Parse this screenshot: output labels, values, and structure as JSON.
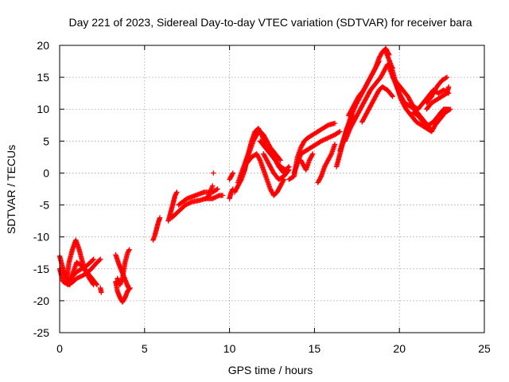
{
  "chart_data": {
    "type": "scatter",
    "title": "Day 221 of 2023, Sidereal Day-to-day VTEC variation (SDTVAR) for receiver bara",
    "xlabel": "GPS time / hours",
    "ylabel": "SDTVAR / TECUs",
    "xlim": [
      0,
      25
    ],
    "ylim": [
      -25,
      20
    ],
    "xticks": [
      "0",
      "5",
      "10",
      "15",
      "20",
      "25"
    ],
    "yticks": [
      "-25",
      "-20",
      "-15",
      "-10",
      "-5",
      "0",
      "5",
      "10",
      "15",
      "20"
    ],
    "grid": true,
    "marker": "plus",
    "series_color": "#ff0000",
    "series": [
      {
        "tracks": [
          [
            [
              0.0,
              -15.0
            ],
            [
              0.2,
              -17.0
            ],
            [
              0.5,
              -17.5
            ],
            [
              0.8,
              -17.0
            ],
            [
              1.0,
              -16.5
            ],
            [
              1.4,
              -16.0
            ],
            [
              1.8,
              -15.2
            ],
            [
              2.2,
              -14.0
            ],
            [
              2.4,
              -13.5
            ]
          ],
          [
            [
              0.0,
              -13.0
            ],
            [
              0.2,
              -15.0
            ],
            [
              0.4,
              -16.5
            ],
            [
              0.6,
              -17.0
            ],
            [
              0.8,
              -16.0
            ],
            [
              1.0,
              -15.5
            ],
            [
              1.3,
              -15.0
            ],
            [
              1.6,
              -14.5
            ],
            [
              2.0,
              -13.5
            ]
          ],
          [
            [
              0.4,
              -17.0
            ],
            [
              0.55,
              -14.0
            ],
            [
              0.75,
              -12.0
            ],
            [
              0.95,
              -10.5
            ],
            [
              1.15,
              -12.0
            ],
            [
              1.35,
              -14.0
            ],
            [
              1.55,
              -15.5
            ],
            [
              1.75,
              -16.5
            ],
            [
              2.0,
              -17.5
            ]
          ],
          [
            [
              0.6,
              -17.5
            ],
            [
              0.8,
              -15.5
            ],
            [
              1.0,
              -14.0
            ],
            [
              1.3,
              -14.5
            ],
            [
              1.6,
              -15.5
            ],
            [
              1.9,
              -16.5
            ],
            [
              2.2,
              -17.5
            ]
          ],
          [
            [
              2.4,
              -18.0
            ],
            [
              2.45,
              -18.7
            ]
          ],
          [
            [
              3.3,
              -12.8
            ],
            [
              3.45,
              -14.0
            ],
            [
              3.6,
              -15.0
            ],
            [
              3.75,
              -16.0
            ],
            [
              3.9,
              -17.0
            ],
            [
              4.05,
              -18.0
            ]
          ],
          [
            [
              3.3,
              -17.0
            ],
            [
              3.4,
              -18.5
            ],
            [
              3.55,
              -19.5
            ],
            [
              3.7,
              -20.2
            ],
            [
              3.85,
              -19.5
            ],
            [
              4.0,
              -18.5
            ],
            [
              4.15,
              -18.0
            ]
          ],
          [
            [
              3.4,
              -16.5
            ],
            [
              3.55,
              -17.5
            ],
            [
              3.7,
              -16.5
            ],
            [
              3.85,
              -14.0
            ],
            [
              4.0,
              -12.5
            ],
            [
              4.1,
              -12.0
            ]
          ],
          [
            [
              5.5,
              -10.5
            ],
            [
              5.6,
              -9.8
            ],
            [
              5.7,
              -8.8
            ],
            [
              5.8,
              -7.8
            ],
            [
              5.9,
              -7.0
            ]
          ],
          [
            [
              6.4,
              -7.5
            ],
            [
              6.5,
              -6.5
            ],
            [
              6.6,
              -5.5
            ],
            [
              6.7,
              -4.5
            ],
            [
              6.8,
              -3.5
            ],
            [
              6.9,
              -3.0
            ]
          ],
          [
            [
              6.6,
              -7.0
            ],
            [
              7.0,
              -6.0
            ],
            [
              7.4,
              -5.0
            ],
            [
              7.8,
              -4.5
            ],
            [
              8.2,
              -4.3
            ],
            [
              8.6,
              -4.0
            ],
            [
              9.0,
              -4.0
            ],
            [
              9.4,
              -3.5
            ],
            [
              9.6,
              -3.5
            ]
          ],
          [
            [
              7.0,
              -5.0
            ],
            [
              7.5,
              -4.0
            ],
            [
              8.0,
              -3.5
            ],
            [
              8.5,
              -3.0
            ],
            [
              9.0,
              -3.0
            ],
            [
              9.3,
              -2.5
            ]
          ],
          [
            [
              8.6,
              -4.0
            ],
            [
              8.8,
              -3.5
            ],
            [
              9.0,
              -2.0
            ]
          ],
          [
            [
              9.05,
              0.0
            ]
          ],
          [
            [
              10.0,
              -4.0
            ],
            [
              10.1,
              -3.0
            ],
            [
              10.2,
              -2.5
            ]
          ],
          [
            [
              10.0,
              -1.0
            ],
            [
              10.1,
              -0.5
            ],
            [
              10.2,
              0.0
            ]
          ],
          [
            [
              10.3,
              -3.0
            ],
            [
              10.5,
              -2.0
            ],
            [
              10.7,
              -1.0
            ],
            [
              10.9,
              0.5
            ],
            [
              11.0,
              2.0
            ],
            [
              11.2,
              3.5
            ],
            [
              11.4,
              5.0
            ],
            [
              11.6,
              6.0
            ],
            [
              11.8,
              6.5
            ],
            [
              12.0,
              6.0
            ],
            [
              12.2,
              5.0
            ],
            [
              12.4,
              4.0
            ],
            [
              12.7,
              3.0
            ],
            [
              13.0,
              2.0
            ]
          ],
          [
            [
              10.5,
              -1.5
            ],
            [
              10.7,
              0.0
            ],
            [
              10.9,
              1.5
            ],
            [
              11.1,
              3.0
            ],
            [
              11.3,
              5.0
            ],
            [
              11.5,
              6.5
            ],
            [
              11.7,
              7.0
            ],
            [
              11.9,
              6.0
            ],
            [
              12.1,
              4.5
            ],
            [
              12.3,
              3.5
            ],
            [
              12.6,
              2.5
            ],
            [
              12.9,
              1.0
            ],
            [
              13.2,
              0.0
            ]
          ],
          [
            [
              10.8,
              0.0
            ],
            [
              11.0,
              1.5
            ],
            [
              11.3,
              2.5
            ],
            [
              11.6,
              3.0
            ],
            [
              11.8,
              2.0
            ],
            [
              12.0,
              0.5
            ],
            [
              12.2,
              -1.0
            ],
            [
              12.4,
              -2.5
            ],
            [
              12.6,
              -3.5
            ],
            [
              12.8,
              -3.0
            ],
            [
              13.0,
              -2.0
            ],
            [
              13.2,
              -1.0
            ]
          ],
          [
            [
              11.8,
              5.0
            ],
            [
              12.1,
              4.0
            ],
            [
              12.4,
              3.0
            ],
            [
              12.7,
              2.0
            ],
            [
              13.0,
              1.0
            ],
            [
              13.3,
              0.5
            ],
            [
              13.5,
              1.0
            ]
          ],
          [
            [
              12.0,
              3.0
            ],
            [
              12.3,
              1.5
            ],
            [
              12.6,
              0.0
            ],
            [
              12.9,
              -1.0
            ],
            [
              13.2,
              -0.5
            ],
            [
              13.5,
              0.5
            ]
          ],
          [
            [
              13.5,
              -1.0
            ],
            [
              13.8,
              -0.5
            ],
            [
              14.0,
              2.5
            ],
            [
              14.2,
              4.0
            ],
            [
              14.4,
              5.0
            ],
            [
              14.6,
              5.5
            ],
            [
              14.9,
              6.0
            ],
            [
              15.2,
              6.5
            ],
            [
              15.5,
              7.0
            ],
            [
              15.8,
              7.5
            ],
            [
              16.2,
              7.8
            ]
          ],
          [
            [
              13.8,
              0.0
            ],
            [
              14.0,
              1.5
            ],
            [
              14.2,
              3.0
            ],
            [
              14.5,
              3.5
            ],
            [
              14.8,
              4.0
            ],
            [
              15.1,
              4.5
            ],
            [
              15.4,
              5.0
            ],
            [
              15.8,
              5.5
            ],
            [
              16.2,
              6.0
            ],
            [
              16.5,
              6.5
            ]
          ],
          [
            [
              14.2,
              2.0
            ],
            [
              14.5,
              0.5
            ],
            [
              14.7,
              2.0
            ],
            [
              14.9,
              3.0
            ]
          ],
          [
            [
              15.2,
              -1.5
            ],
            [
              15.4,
              -0.5
            ],
            [
              15.6,
              1.0
            ],
            [
              15.8,
              2.0
            ],
            [
              16.0,
              3.0
            ],
            [
              16.2,
              4.5
            ]
          ],
          [
            [
              16.3,
              1.0
            ],
            [
              16.5,
              3.0
            ],
            [
              16.7,
              5.0
            ],
            [
              16.9,
              7.0
            ],
            [
              17.1,
              8.0
            ],
            [
              17.3,
              9.0
            ]
          ],
          [
            [
              16.5,
              3.5
            ],
            [
              16.8,
              6.0
            ],
            [
              17.1,
              8.5
            ],
            [
              17.4,
              10.5
            ],
            [
              17.7,
              12.0
            ],
            [
              18.0,
              13.5
            ],
            [
              18.3,
              15.0
            ],
            [
              18.6,
              16.5
            ],
            [
              18.8,
              18.0
            ],
            [
              19.0,
              19.0
            ],
            [
              19.2,
              19.5
            ],
            [
              19.4,
              18.5
            ]
          ],
          [
            [
              16.8,
              5.0
            ],
            [
              17.1,
              7.0
            ],
            [
              17.4,
              8.5
            ],
            [
              17.7,
              10.0
            ],
            [
              18.0,
              11.5
            ],
            [
              18.3,
              13.0
            ],
            [
              18.6,
              14.0
            ],
            [
              18.9,
              15.0
            ],
            [
              19.1,
              16.0
            ],
            [
              19.3,
              17.0
            ],
            [
              19.6,
              16.5
            ]
          ],
          [
            [
              17.0,
              9.0
            ],
            [
              17.3,
              10.5
            ],
            [
              17.6,
              12.0
            ],
            [
              17.9,
              13.0
            ],
            [
              18.2,
              14.5
            ],
            [
              18.5,
              16.0
            ],
            [
              18.8,
              17.5
            ]
          ],
          [
            [
              17.8,
              8.0
            ],
            [
              18.0,
              9.0
            ],
            [
              18.2,
              10.0
            ],
            [
              18.4,
              11.0
            ],
            [
              18.6,
              12.0
            ],
            [
              18.8,
              13.0
            ],
            [
              19.0,
              13.5
            ],
            [
              19.3,
              13.0
            ],
            [
              19.6,
              12.0
            ]
          ],
          [
            [
              19.2,
              19.0
            ],
            [
              19.5,
              17.0
            ],
            [
              19.8,
              14.0
            ],
            [
              20.1,
              11.5
            ],
            [
              20.4,
              10.0
            ],
            [
              20.7,
              9.0
            ],
            [
              21.0,
              8.0
            ],
            [
              21.3,
              7.5
            ],
            [
              21.6,
              7.0
            ],
            [
              21.9,
              6.5
            ],
            [
              22.1,
              7.5
            ],
            [
              22.4,
              8.5
            ],
            [
              22.7,
              9.5
            ],
            [
              23.0,
              10.0
            ]
          ],
          [
            [
              19.4,
              16.5
            ],
            [
              19.7,
              14.5
            ],
            [
              20.0,
              12.5
            ],
            [
              20.3,
              11.0
            ],
            [
              20.6,
              10.5
            ],
            [
              20.9,
              10.0
            ],
            [
              21.2,
              9.0
            ],
            [
              21.5,
              8.0
            ],
            [
              21.8,
              7.0
            ]
          ],
          [
            [
              19.6,
              15.0
            ],
            [
              19.9,
              14.0
            ],
            [
              20.2,
              13.0
            ],
            [
              20.5,
              12.0
            ],
            [
              20.8,
              10.5
            ],
            [
              21.1,
              10.0
            ],
            [
              21.4,
              11.0
            ],
            [
              21.7,
              12.0
            ],
            [
              22.0,
              13.0
            ],
            [
              22.3,
              12.5
            ],
            [
              22.6,
              13.0
            ],
            [
              22.9,
              12.5
            ]
          ],
          [
            [
              20.8,
              9.5
            ],
            [
              21.1,
              9.0
            ],
            [
              21.4,
              8.0
            ],
            [
              21.7,
              7.5
            ],
            [
              22.0,
              8.0
            ],
            [
              22.3,
              9.0
            ],
            [
              22.6,
              10.0
            ],
            [
              22.9,
              10.0
            ]
          ],
          [
            [
              21.6,
              11.0
            ],
            [
              21.9,
              12.0
            ],
            [
              22.2,
              13.5
            ],
            [
              22.5,
              14.5
            ],
            [
              22.8,
              15.0
            ]
          ],
          [
            [
              21.6,
              10.0
            ],
            [
              21.9,
              11.0
            ],
            [
              22.2,
              11.5
            ],
            [
              22.5,
              12.0
            ],
            [
              22.8,
              12.5
            ],
            [
              22.9,
              13.5
            ]
          ]
        ]
      }
    ]
  }
}
